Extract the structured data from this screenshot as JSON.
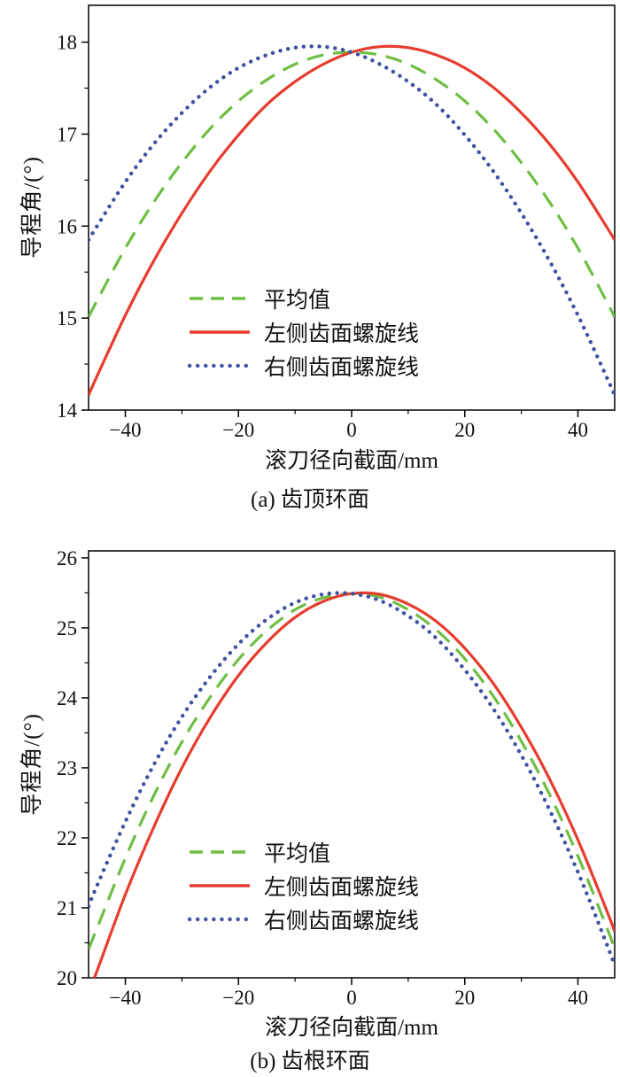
{
  "page": {
    "background": "#ffffff"
  },
  "chart_data": [
    {
      "id": "chart-a",
      "type": "line",
      "title": "(a) 齿顶环面",
      "xlabel": "滚刀径向截面/mm",
      "ylabel": "导程角/(°)",
      "xlim": [
        -46.5,
        46.5
      ],
      "ylim": [
        14,
        18.4
      ],
      "xticks": [
        -40,
        -20,
        0,
        20,
        40
      ],
      "xtick_labels": [
        "−40",
        "−20",
        "0",
        "20",
        "40"
      ],
      "xminor": [
        -30,
        -10,
        10,
        30
      ],
      "yticks": [
        14,
        15,
        16,
        17,
        18
      ],
      "ytick_labels": [
        "14",
        "15",
        "16",
        "17",
        "18"
      ],
      "yminor": [
        14.5,
        15.5,
        16.5,
        17.5
      ],
      "grid": false,
      "legend_position": "inside lower-left",
      "x": [
        -46.5,
        -45,
        -40,
        -35,
        -30,
        -25,
        -20,
        -15,
        -10,
        -5,
        0,
        5,
        10,
        15,
        20,
        25,
        30,
        35,
        40,
        45,
        46.5
      ],
      "series": [
        {
          "key": "mean",
          "name": "平均值",
          "color": "#6ebe44",
          "style": "dashed",
          "values": [
            15.01,
            15.19,
            15.76,
            16.26,
            16.69,
            17.06,
            17.36,
            17.59,
            17.76,
            17.86,
            17.89,
            17.86,
            17.76,
            17.59,
            17.36,
            17.06,
            16.69,
            16.26,
            15.76,
            15.19,
            15.01
          ]
        },
        {
          "key": "left-flank-helix",
          "name": "左侧齿面螺旋线",
          "color": "#e73c2e",
          "style": "solid",
          "values": [
            14.16,
            14.37,
            15.03,
            15.62,
            16.14,
            16.6,
            16.99,
            17.32,
            17.57,
            17.76,
            17.89,
            17.95,
            17.94,
            17.86,
            17.72,
            17.51,
            17.23,
            16.89,
            16.48,
            16.0,
            15.85
          ]
        },
        {
          "key": "right-flank-helix",
          "name": "右侧齿面螺旋线",
          "color": "#3f51a1",
          "style": "dotted",
          "values": [
            15.85,
            16.0,
            16.48,
            16.89,
            17.23,
            17.51,
            17.72,
            17.86,
            17.94,
            17.95,
            17.89,
            17.76,
            17.57,
            17.32,
            16.99,
            16.6,
            16.14,
            15.62,
            15.03,
            14.37,
            14.16
          ]
        }
      ]
    },
    {
      "id": "chart-b",
      "type": "line",
      "title": "(b) 齿根环面",
      "xlabel": "滚刀径向截面/mm",
      "ylabel": "导程角/(°)",
      "xlim": [
        -46.5,
        46.5
      ],
      "ylim": [
        20,
        26.1
      ],
      "xticks": [
        -40,
        -20,
        0,
        20,
        40
      ],
      "xtick_labels": [
        "−40",
        "−20",
        "0",
        "20",
        "40"
      ],
      "xminor": [
        -30,
        -10,
        10,
        30
      ],
      "yticks": [
        20,
        21,
        22,
        23,
        24,
        25,
        26
      ],
      "ytick_labels": [
        "20",
        "21",
        "22",
        "23",
        "24",
        "25",
        "26"
      ],
      "yminor": [
        20.5,
        21.5,
        22.5,
        23.5,
        24.5,
        25.5
      ],
      "grid": false,
      "legend_position": "inside lower-left",
      "x": [
        -46.5,
        -45,
        -40,
        -35,
        -30,
        -25,
        -20,
        -15,
        -10,
        -5,
        0,
        5,
        10,
        15,
        20,
        25,
        30,
        35,
        40,
        45,
        46.5
      ],
      "series": [
        {
          "key": "mean",
          "name": "平均值",
          "color": "#6ebe44",
          "style": "dashed",
          "values": [
            20.41,
            20.71,
            21.71,
            22.6,
            23.37,
            24.01,
            24.55,
            24.96,
            25.26,
            25.43,
            25.49,
            25.44,
            25.26,
            24.97,
            24.56,
            24.03,
            23.38,
            22.62,
            21.74,
            20.74,
            20.42
          ]
        },
        {
          "key": "left-flank-helix",
          "name": "左侧齿面螺旋线",
          "color": "#e73c2e",
          "style": "solid",
          "values": [
            19.8,
            20.1,
            21.19,
            22.15,
            23.0,
            23.72,
            24.32,
            24.79,
            25.15,
            25.38,
            25.49,
            25.48,
            25.34,
            25.09,
            24.71,
            24.21,
            23.58,
            22.84,
            21.97,
            20.98,
            20.66
          ]
        },
        {
          "key": "right-flank-helix",
          "name": "右侧齿面螺旋线",
          "color": "#3f51a1",
          "style": "dotted",
          "values": [
            21.02,
            21.32,
            22.23,
            23.04,
            23.73,
            24.3,
            24.77,
            25.12,
            25.36,
            25.48,
            25.49,
            25.39,
            25.17,
            24.85,
            24.4,
            23.85,
            23.18,
            22.4,
            21.51,
            20.5,
            20.18
          ]
        }
      ]
    }
  ]
}
